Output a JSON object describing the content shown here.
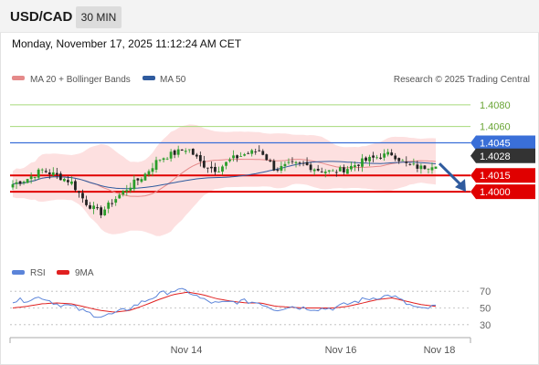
{
  "header": {
    "symbol": "USD/CAD",
    "timeframe": "30 MIN"
  },
  "datetime": "Monday, November 17, 2025 11:12:24 AM CET",
  "colors": {
    "resistance_line": "#3a6fd8",
    "pivot_line": "#e00000",
    "target_line": "#a6d97a",
    "ma20": "#e58a8a",
    "ma50": "#2f5b9e",
    "band_fill": "#fcd6d6",
    "candle_up": "#2a9d2a",
    "candle_down": "#222222",
    "rsi": "#5b84d9",
    "rsi_ma": "#e02020",
    "arrow": "#2f5b9e"
  },
  "legend": {
    "ma20": "MA 20 + Bollinger Bands",
    "ma50": "MA 50",
    "copyright": "Research © 2025 Trading Central",
    "rsi": "RSI",
    "rsi_ma": "9MA"
  },
  "chart_data": [
    {
      "type": "candlestick",
      "ylim": [
        1.3948,
        1.4095
      ],
      "x_labels": [
        "Nov 14",
        "Nov 16",
        "Nov 18"
      ],
      "current_price": "1.4028",
      "levels": [
        {
          "label": "1.4080",
          "value": 1.408,
          "kind": "target"
        },
        {
          "label": "1.4060",
          "value": 1.406,
          "kind": "target"
        },
        {
          "label": "1.4045",
          "value": 1.4045,
          "kind": "resistance"
        },
        {
          "label": "1.4015",
          "value": 1.4015,
          "kind": "pivot"
        },
        {
          "label": "1.4000",
          "value": 1.4,
          "kind": "support"
        }
      ],
      "close_anchors": [
        1.4007,
        1.4012,
        1.402,
        1.4015,
        1.4009,
        1.399,
        1.398,
        1.3993,
        1.4005,
        1.4015,
        1.403,
        1.4035,
        1.404,
        1.4025,
        1.402,
        1.403,
        1.4035,
        1.4038,
        1.402,
        1.4025,
        1.4025,
        1.402,
        1.4018,
        1.4022,
        1.4028,
        1.4032,
        1.4035,
        1.4025,
        1.4022,
        1.4026
      ],
      "forecast": {
        "from": 1.4026,
        "to": 1.4
      }
    },
    {
      "type": "line",
      "name": "RSI",
      "yticks": [
        "70",
        "50",
        "30"
      ],
      "ylim": [
        20,
        80
      ],
      "rsi_anchors": [
        58,
        60,
        63,
        55,
        52,
        45,
        40,
        43,
        50,
        58,
        66,
        71,
        70,
        60,
        55,
        57,
        58,
        56,
        48,
        52,
        50,
        49,
        50,
        55,
        60,
        63,
        65,
        55,
        48,
        52
      ],
      "ma_anchors": [
        50,
        52,
        55,
        56,
        55,
        51,
        47,
        45,
        47,
        53,
        60,
        66,
        69,
        66,
        61,
        58,
        56,
        56,
        52,
        51,
        50,
        50,
        50,
        52,
        56,
        60,
        62,
        58,
        54,
        52
      ]
    }
  ]
}
